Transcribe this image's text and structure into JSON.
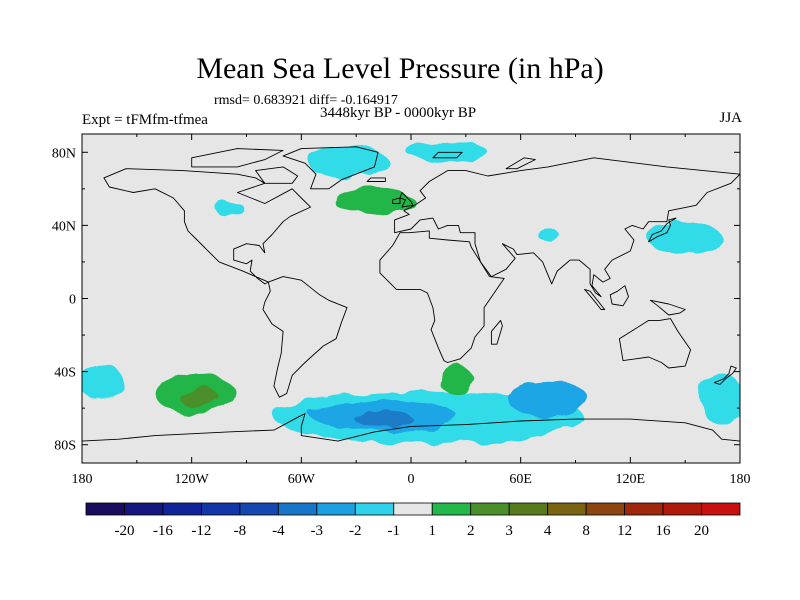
{
  "title": "Mean Sea Level Pressure (in hPa)",
  "stats": "rmsd= 0.683921 diff= -0.164917",
  "experiment": "Expt = tFMfm-tfmea",
  "period": "3448kyr BP - 0000kyr BP",
  "season": "JJA",
  "lat_ticks": [
    "80N",
    "40N",
    "0",
    "40S",
    "80S"
  ],
  "lon_ticks": [
    "180",
    "120W",
    "60W",
    "0",
    "60E",
    "120E",
    "180"
  ],
  "colorbar": {
    "labels": [
      "-20",
      "-16",
      "-12",
      "-8",
      "-4",
      "-3",
      "-2",
      "-1",
      "1",
      "2",
      "3",
      "4",
      "8",
      "12",
      "16",
      "20"
    ],
    "colors": [
      "#1b0d5e",
      "#15167f",
      "#10249a",
      "#1235a8",
      "#1447b0",
      "#1876c8",
      "#1da0e2",
      "#2fd2ea",
      "#e6e6e6",
      "#22b84a",
      "#4a8f2a",
      "#577a1e",
      "#7a6412",
      "#8e4410",
      "#9f280c",
      "#b01a0a",
      "#c81010"
    ]
  },
  "colors": {
    "background": "#e6e6e6",
    "neg1": "#33dbe8",
    "neg2": "#1ca6e6",
    "neg3": "#1a7cc8",
    "pos1": "#23b547",
    "pos2": "#4c8f2b",
    "pos3": "#5b7a20",
    "coast": "#000000"
  },
  "anomalies": [
    {
      "name": "greenland-low",
      "lon": -35,
      "lat": 75,
      "rx": 22,
      "ry": 9,
      "level": "neg1"
    },
    {
      "name": "arctic-low",
      "lon": 20,
      "lat": 80,
      "rx": 22,
      "ry": 6,
      "level": "neg1"
    },
    {
      "name": "canada-low",
      "lon": -100,
      "lat": 50,
      "rx": 8,
      "ry": 4,
      "level": "neg1"
    },
    {
      "name": "north-atlantic-high",
      "lon": -20,
      "lat": 53,
      "rx": 22,
      "ry": 7,
      "level": "pos1"
    },
    {
      "name": "northwest-pacific-low",
      "lon": 150,
      "lat": 33,
      "rx": 20,
      "ry": 9,
      "level": "neg1"
    },
    {
      "name": "arabian-low",
      "lon": 75,
      "lat": 35,
      "rx": 6,
      "ry": 3,
      "level": "neg1"
    },
    {
      "name": "south-pacific-high",
      "lon": -118,
      "lat": -52,
      "rx": 22,
      "ry": 11,
      "level": "pos1"
    },
    {
      "name": "south-pacific-high-core",
      "lon": -116,
      "lat": -54,
      "rx": 11,
      "ry": 5,
      "level": "pos2"
    },
    {
      "name": "southern-ocean-low",
      "lon": 10,
      "lat": -65,
      "rx": 85,
      "ry": 14,
      "level": "neg1"
    },
    {
      "name": "southern-ocean-low-mid",
      "lon": -15,
      "lat": -64,
      "rx": 40,
      "ry": 8,
      "level": "neg2"
    },
    {
      "name": "southern-ocean-low-core",
      "lon": -15,
      "lat": -66,
      "rx": 16,
      "ry": 4,
      "level": "neg3"
    },
    {
      "name": "indian-ocean-low",
      "lon": 75,
      "lat": -55,
      "rx": 22,
      "ry": 10,
      "level": "neg2"
    },
    {
      "name": "south-atlantic-high",
      "lon": 25,
      "lat": -45,
      "rx": 10,
      "ry": 7,
      "level": "pos1"
    },
    {
      "name": "southwest-pacific-low",
      "lon": 170,
      "lat": -55,
      "rx": 12,
      "ry": 14,
      "level": "neg1"
    },
    {
      "name": "east-pacific-low",
      "lon": -170,
      "lat": -45,
      "rx": 12,
      "ry": 10,
      "level": "neg1"
    }
  ],
  "continents": [
    {
      "name": "north-america",
      "pts": [
        [
          -168,
          66
        ],
        [
          -156,
          71
        ],
        [
          -125,
          70
        ],
        [
          -95,
          68
        ],
        [
          -85,
          66
        ],
        [
          -80,
          63
        ],
        [
          -95,
          58
        ],
        [
          -80,
          52
        ],
        [
          -65,
          60
        ],
        [
          -60,
          55
        ],
        [
          -55,
          50
        ],
        [
          -66,
          45
        ],
        [
          -70,
          42
        ],
        [
          -76,
          35
        ],
        [
          -81,
          30
        ],
        [
          -80,
          25
        ],
        [
          -83,
          29
        ],
        [
          -90,
          30
        ],
        [
          -97,
          27
        ],
        [
          -97,
          21
        ],
        [
          -90,
          19
        ],
        [
          -87,
          21
        ],
        [
          -88,
          15
        ],
        [
          -84,
          11
        ],
        [
          -80,
          8
        ],
        [
          -78,
          9
        ],
        [
          -85,
          12
        ],
        [
          -92,
          15
        ],
        [
          -105,
          20
        ],
        [
          -110,
          25
        ],
        [
          -117,
          32
        ],
        [
          -122,
          37
        ],
        [
          -124,
          42
        ],
        [
          -124,
          48
        ],
        [
          -130,
          55
        ],
        [
          -140,
          60
        ],
        [
          -152,
          58
        ],
        [
          -165,
          61
        ]
      ]
    },
    {
      "name": "greenland",
      "pts": [
        [
          -55,
          60
        ],
        [
          -45,
          60
        ],
        [
          -38,
          65
        ],
        [
          -20,
          72
        ],
        [
          -18,
          80
        ],
        [
          -30,
          83
        ],
        [
          -60,
          82
        ],
        [
          -70,
          78
        ],
        [
          -58,
          74
        ],
        [
          -52,
          68
        ]
      ]
    },
    {
      "name": "south-america",
      "pts": [
        [
          -78,
          9
        ],
        [
          -70,
          12
        ],
        [
          -60,
          10
        ],
        [
          -50,
          2
        ],
        [
          -45,
          -1
        ],
        [
          -35,
          -5
        ],
        [
          -38,
          -13
        ],
        [
          -41,
          -22
        ],
        [
          -48,
          -26
        ],
        [
          -58,
          -35
        ],
        [
          -65,
          -42
        ],
        [
          -68,
          -52
        ],
        [
          -72,
          -54
        ],
        [
          -75,
          -48
        ],
        [
          -73,
          -38
        ],
        [
          -71,
          -30
        ],
        [
          -70,
          -18
        ],
        [
          -76,
          -14
        ],
        [
          -81,
          -6
        ],
        [
          -80,
          -2
        ],
        [
          -77,
          4
        ]
      ]
    },
    {
      "name": "eurasia",
      "pts": [
        [
          -9,
          36
        ],
        [
          -9,
          43
        ],
        [
          -1,
          46
        ],
        [
          -4,
          48
        ],
        [
          2,
          51
        ],
        [
          8,
          55
        ],
        [
          5,
          59
        ],
        [
          10,
          64
        ],
        [
          20,
          70
        ],
        [
          30,
          70
        ],
        [
          42,
          67
        ],
        [
          60,
          70
        ],
        [
          75,
          72
        ],
        [
          100,
          77
        ],
        [
          140,
          72
        ],
        [
          160,
          70
        ],
        [
          180,
          68
        ],
        [
          175,
          63
        ],
        [
          162,
          58
        ],
        [
          156,
          51
        ],
        [
          141,
          48
        ],
        [
          140,
          42
        ],
        [
          130,
          42
        ],
        [
          127,
          38
        ],
        [
          121,
          40
        ],
        [
          117,
          38
        ],
        [
          122,
          32
        ],
        [
          120,
          26
        ],
        [
          110,
          21
        ],
        [
          106,
          16
        ],
        [
          109,
          11
        ],
        [
          105,
          9
        ],
        [
          100,
          13
        ],
        [
          99,
          7
        ],
        [
          104,
          1
        ],
        [
          101,
          3
        ],
        [
          98,
          8
        ],
        [
          98,
          16
        ],
        [
          92,
          21
        ],
        [
          87,
          21
        ],
        [
          80,
          15
        ],
        [
          77,
          8
        ],
        [
          72,
          20
        ],
        [
          67,
          25
        ],
        [
          58,
          24
        ],
        [
          56,
          27
        ],
        [
          50,
          30
        ],
        [
          57,
          22
        ],
        [
          52,
          16
        ],
        [
          44,
          12
        ],
        [
          38,
          20
        ],
        [
          35,
          30
        ],
        [
          35,
          36
        ],
        [
          27,
          36
        ],
        [
          26,
          40
        ],
        [
          20,
          40
        ],
        [
          15,
          38
        ],
        [
          12,
          44
        ],
        [
          5,
          43
        ],
        [
          0,
          38
        ]
      ]
    },
    {
      "name": "africa",
      "pts": [
        [
          -17,
          21
        ],
        [
          -17,
          14
        ],
        [
          -8,
          5
        ],
        [
          5,
          5
        ],
        [
          9,
          3
        ],
        [
          12,
          -5
        ],
        [
          13,
          -12
        ],
        [
          11,
          -17
        ],
        [
          15,
          -27
        ],
        [
          18,
          -34
        ],
        [
          20,
          -35
        ],
        [
          27,
          -33
        ],
        [
          33,
          -27
        ],
        [
          35,
          -21
        ],
        [
          40,
          -15
        ],
        [
          40,
          -5
        ],
        [
          51,
          11
        ],
        [
          43,
          12
        ],
        [
          38,
          20
        ],
        [
          33,
          28
        ],
        [
          32,
          31
        ],
        [
          20,
          32
        ],
        [
          10,
          33
        ],
        [
          10,
          37
        ],
        [
          -1,
          36
        ],
        [
          -6,
          36
        ],
        [
          -10,
          29
        ]
      ]
    },
    {
      "name": "australia",
      "pts": [
        [
          114,
          -22
        ],
        [
          116,
          -34
        ],
        [
          130,
          -32
        ],
        [
          137,
          -35
        ],
        [
          141,
          -38
        ],
        [
          150,
          -37
        ],
        [
          153,
          -28
        ],
        [
          146,
          -18
        ],
        [
          142,
          -11
        ],
        [
          136,
          -12
        ],
        [
          130,
          -12
        ],
        [
          122,
          -17
        ]
      ]
    },
    {
      "name": "antarctica",
      "pts": [
        [
          -180,
          -78
        ],
        [
          -160,
          -77
        ],
        [
          -140,
          -75
        ],
        [
          -100,
          -73
        ],
        [
          -75,
          -72
        ],
        [
          -62,
          -65
        ],
        [
          -58,
          -63
        ],
        [
          -60,
          -70
        ],
        [
          -60,
          -75
        ],
        [
          -40,
          -78
        ],
        [
          -20,
          -73
        ],
        [
          0,
          -70
        ],
        [
          30,
          -69
        ],
        [
          60,
          -67
        ],
        [
          90,
          -66
        ],
        [
          120,
          -66
        ],
        [
          150,
          -68
        ],
        [
          165,
          -72
        ],
        [
          170,
          -77
        ],
        [
          180,
          -78
        ],
        [
          180,
          -90
        ],
        [
          -180,
          -90
        ]
      ]
    },
    {
      "name": "britain",
      "pts": [
        [
          -5,
          50
        ],
        [
          1,
          51
        ],
        [
          0,
          53
        ],
        [
          -3,
          56
        ],
        [
          -5,
          58
        ],
        [
          -6,
          55
        ],
        [
          -3,
          54
        ]
      ]
    },
    {
      "name": "ireland",
      "pts": [
        [
          -10,
          52
        ],
        [
          -6,
          52
        ],
        [
          -6,
          55
        ],
        [
          -10,
          54
        ]
      ]
    },
    {
      "name": "iceland",
      "pts": [
        [
          -24,
          64
        ],
        [
          -14,
          64
        ],
        [
          -14,
          66
        ],
        [
          -22,
          66
        ]
      ]
    },
    {
      "name": "madagascar",
      "pts": [
        [
          44,
          -25
        ],
        [
          47,
          -25
        ],
        [
          50,
          -15
        ],
        [
          49,
          -12
        ],
        [
          44,
          -18
        ]
      ]
    },
    {
      "name": "japan",
      "pts": [
        [
          130,
          31
        ],
        [
          135,
          34
        ],
        [
          140,
          36
        ],
        [
          142,
          40
        ],
        [
          141,
          43
        ],
        [
          145,
          44
        ],
        [
          140,
          41
        ],
        [
          137,
          37
        ],
        [
          132,
          35
        ]
      ]
    },
    {
      "name": "new-zealand",
      "pts": [
        [
          166,
          -46
        ],
        [
          171,
          -44
        ],
        [
          174,
          -41
        ],
        [
          175,
          -37
        ],
        [
          178,
          -38
        ],
        [
          176,
          -41
        ],
        [
          172,
          -44
        ],
        [
          169,
          -47
        ]
      ]
    },
    {
      "name": "new-guinea",
      "pts": [
        [
          131,
          -1
        ],
        [
          141,
          -3
        ],
        [
          150,
          -6
        ],
        [
          147,
          -8
        ],
        [
          141,
          -9
        ],
        [
          135,
          -4
        ]
      ]
    },
    {
      "name": "borneo",
      "pts": [
        [
          109,
          2
        ],
        [
          113,
          4
        ],
        [
          117,
          7
        ],
        [
          119,
          1
        ],
        [
          116,
          -4
        ],
        [
          110,
          -3
        ]
      ]
    },
    {
      "name": "sumatra",
      "pts": [
        [
          95,
          5
        ],
        [
          98,
          4
        ],
        [
          106,
          -6
        ],
        [
          104,
          -6
        ],
        [
          100,
          -1
        ]
      ]
    },
    {
      "name": "baffin",
      "pts": [
        [
          -80,
          63
        ],
        [
          -65,
          63
        ],
        [
          -62,
          67
        ],
        [
          -70,
          72
        ],
        [
          -85,
          70
        ]
      ]
    },
    {
      "name": "arctic-islands",
      "pts": [
        [
          -120,
          72
        ],
        [
          -95,
          72
        ],
        [
          -80,
          76
        ],
        [
          -70,
          81
        ],
        [
          -95,
          82
        ],
        [
          -120,
          77
        ]
      ]
    },
    {
      "name": "svalbard",
      "pts": [
        [
          12,
          77
        ],
        [
          25,
          77
        ],
        [
          28,
          80
        ],
        [
          15,
          80
        ]
      ]
    },
    {
      "name": "novaya-zemlya",
      "pts": [
        [
          52,
          71
        ],
        [
          58,
          71
        ],
        [
          68,
          76
        ],
        [
          62,
          77
        ]
      ]
    }
  ]
}
